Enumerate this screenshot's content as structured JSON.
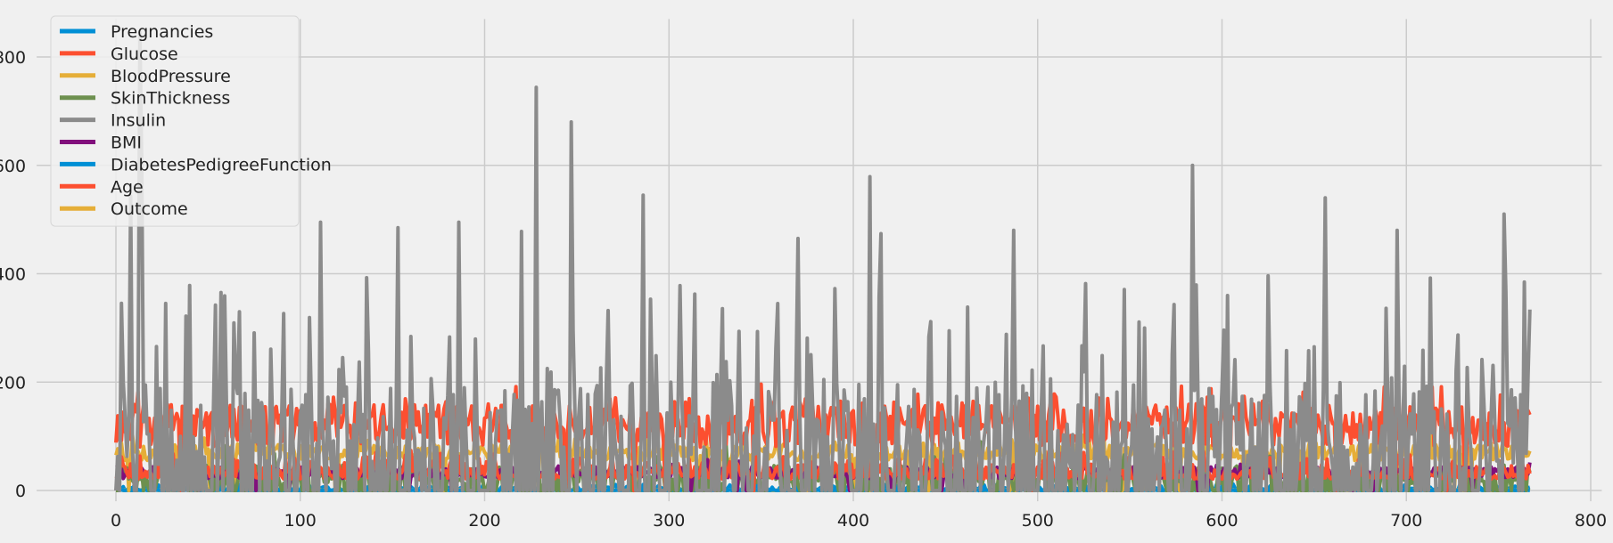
{
  "chart_data": {
    "type": "line",
    "title": "",
    "xlabel": "",
    "ylabel": "",
    "xlim": [
      -43,
      806
    ],
    "ylim": [
      -20,
      870
    ],
    "xticks": [
      0,
      100,
      200,
      300,
      400,
      500,
      600,
      700,
      800
    ],
    "yticks": [
      0,
      200,
      400,
      600,
      800
    ],
    "grid": true,
    "legend_position": "upper-left",
    "n_points": 768,
    "series": [
      {
        "name": "Pregnancies",
        "color": "#008fd5",
        "range": [
          0,
          17
        ],
        "mean": 4
      },
      {
        "name": "Glucose",
        "color": "#fc4f30",
        "range": [
          0,
          199
        ],
        "mean": 121
      },
      {
        "name": "BloodPressure",
        "color": "#e5ae38",
        "range": [
          0,
          122
        ],
        "mean": 69
      },
      {
        "name": "SkinThickness",
        "color": "#6d904f",
        "range": [
          0,
          99
        ],
        "mean": 21
      },
      {
        "name": "Insulin",
        "color": "#8b8b8b",
        "range": [
          0,
          846
        ],
        "mean": 80,
        "peaks": [
          [
            8,
            543
          ],
          [
            13,
            846
          ],
          [
            14,
            600
          ],
          [
            54,
            342
          ],
          [
            111,
            495
          ],
          [
            153,
            485
          ],
          [
            186,
            495
          ],
          [
            220,
            478
          ],
          [
            228,
            744
          ],
          [
            247,
            680
          ],
          [
            286,
            545
          ],
          [
            370,
            465
          ],
          [
            409,
            579
          ],
          [
            415,
            474
          ],
          [
            487,
            480
          ],
          [
            584,
            600
          ],
          [
            656,
            540
          ],
          [
            695,
            480
          ],
          [
            713,
            392
          ],
          [
            753,
            510
          ]
        ]
      },
      {
        "name": "BMI",
        "color": "#810f7c",
        "range": [
          0,
          67.1
        ],
        "mean": 32
      },
      {
        "name": "DiabetesPedigreeFunction",
        "color": "#008fd5",
        "range": [
          0.08,
          2.42
        ],
        "mean": 0.47
      },
      {
        "name": "Age",
        "color": "#fc4f30",
        "range": [
          21,
          81
        ],
        "mean": 33
      },
      {
        "name": "Outcome",
        "color": "#e5ae38",
        "range": [
          0,
          1
        ],
        "mean": 0.35
      }
    ]
  }
}
